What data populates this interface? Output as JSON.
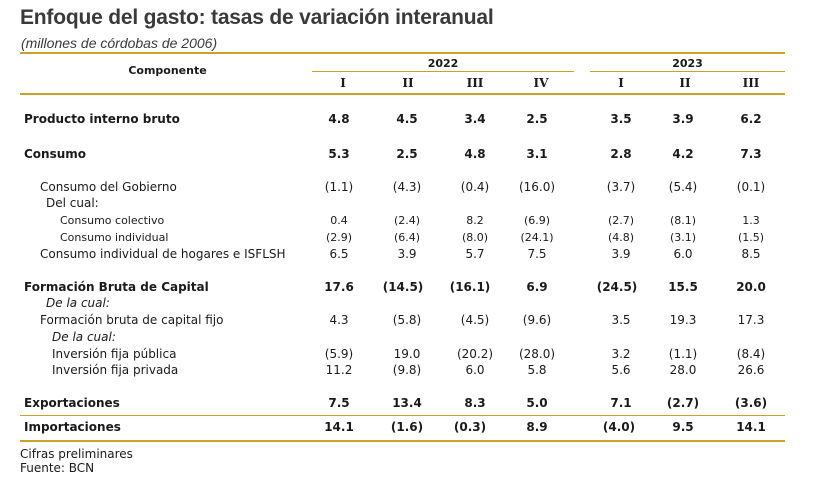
{
  "title": "Enfoque del gasto: tasas de variación interanual",
  "subtitle": "(millones de córdobas de 2006)",
  "header": {
    "component_label": "Componente",
    "year_2022": "2022",
    "year_2023": "2023",
    "quarters": [
      "I",
      "II",
      "III",
      "IV",
      "I",
      "II",
      "III"
    ]
  },
  "rows": [
    {
      "label": "Producto interno bruto",
      "values": [
        "4.8",
        "4.5",
        "3.4",
        "2.5",
        "3.5",
        "3.9",
        "6.2"
      ]
    },
    {
      "label": "Consumo",
      "values": [
        "5.3",
        "2.5",
        "4.8",
        "3.1",
        "2.8",
        "4.2",
        "7.3"
      ]
    },
    {
      "label": "Consumo del Gobierno",
      "values": [
        "(1.1)",
        "(4.3)",
        "(0.4)",
        "(16.0)",
        "(3.7)",
        "(5.4)",
        "(0.1)"
      ]
    },
    {
      "label": "Del cual:",
      "values": []
    },
    {
      "label": "Consumo colectivo",
      "values": [
        "0.4",
        "(2.4)",
        "8.2",
        "(6.9)",
        "(2.7)",
        "(8.1)",
        "1.3"
      ]
    },
    {
      "label": "Consumo individual",
      "values": [
        "(2.9)",
        "(6.4)",
        "(8.0)",
        "(24.1)",
        "(4.8)",
        "(3.1)",
        "(1.5)"
      ]
    },
    {
      "label": "Consumo individual de hogares e ISFLSH",
      "values": [
        "6.5",
        "3.9",
        "5.7",
        "7.5",
        "3.9",
        "6.0",
        "8.5"
      ]
    },
    {
      "label": "Formación Bruta de Capital",
      "values": [
        "17.6",
        "(14.5)",
        "(16.1)",
        "6.9",
        "(24.5)",
        "15.5",
        "20.0"
      ]
    },
    {
      "label": "De la cual:",
      "values": []
    },
    {
      "label": "Formación bruta de capital fijo",
      "values": [
        "4.3",
        "(5.8)",
        "(4.5)",
        "(9.6)",
        "3.5",
        "19.3",
        "17.3"
      ]
    },
    {
      "label": "De la cual:",
      "values": []
    },
    {
      "label": "Inversión fija pública",
      "values": [
        "(5.9)",
        "19.0",
        "(20.2)",
        "(28.0)",
        "3.2",
        "(1.1)",
        "(8.4)"
      ]
    },
    {
      "label": "Inversión fija privada",
      "values": [
        "11.2",
        "(9.8)",
        "6.0",
        "5.8",
        "5.6",
        "28.0",
        "26.6"
      ]
    },
    {
      "label": "Exportaciones",
      "values": [
        "7.5",
        "13.4",
        "8.3",
        "5.0",
        "7.1",
        "(2.7)",
        "(3.6)"
      ]
    },
    {
      "label": "Importaciones",
      "values": [
        "14.1",
        "(1.6)",
        "(0.3)",
        "8.9",
        "(4.0)",
        "9.5",
        "14.1"
      ]
    }
  ],
  "footer": {
    "note": "Cifras preliminares",
    "source": "Fuente: BCN"
  }
}
